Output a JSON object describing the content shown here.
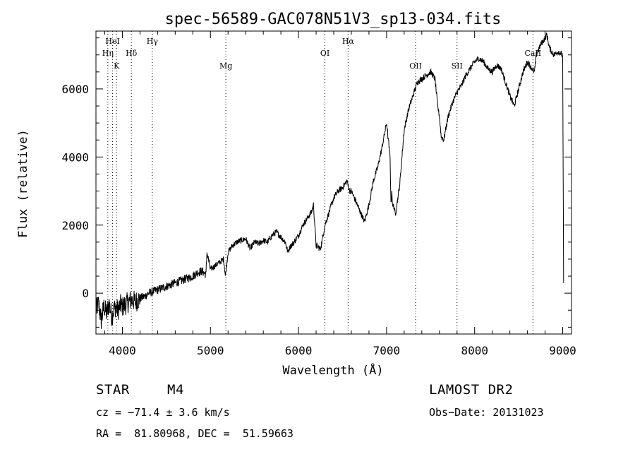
{
  "chart_data": {
    "type": "line",
    "title": "spec-56589-GAC078N51V3_sp13-034.fits",
    "xlabel": "Wavelength (Å)",
    "ylabel": "Flux (relative)",
    "xlim": [
      3700,
      9100
    ],
    "ylim": [
      -1200,
      7700
    ],
    "xticks": [
      4000,
      5000,
      6000,
      7000,
      8000,
      9000
    ],
    "yticks": [
      0,
      2000,
      4000,
      6000
    ],
    "grid": false,
    "line_color": "#000000",
    "spectral_lines": [
      {
        "name": "HeI",
        "wavelength": 3889,
        "row": 0
      },
      {
        "name": "Hη",
        "wavelength": 3835,
        "row": 1
      },
      {
        "name": "Hδ",
        "wavelength": 4102,
        "row": 1
      },
      {
        "name": "Hγ",
        "wavelength": 4340,
        "row": 0
      },
      {
        "name": "K",
        "wavelength": 3934,
        "row": 2
      },
      {
        "name": "Mg",
        "wavelength": 5175,
        "row": 2
      },
      {
        "name": "OI",
        "wavelength": 6300,
        "row": 1
      },
      {
        "name": "Hα",
        "wavelength": 6563,
        "row": 0
      },
      {
        "name": "OII",
        "wavelength": 7330,
        "row": 2
      },
      {
        "name": "SII",
        "wavelength": 7800,
        "row": 2
      },
      {
        "name": "CaII",
        "wavelength": 8662,
        "row": 1
      }
    ],
    "series": [
      {
        "name": "flux",
        "x": [
          3700,
          3730,
          3760,
          3790,
          3820,
          3850,
          3880,
          3900,
          3920,
          3950,
          3980,
          4000,
          4050,
          4100,
          4150,
          4200,
          4250,
          4300,
          4350,
          4400,
          4500,
          4600,
          4700,
          4800,
          4850,
          4900,
          4950,
          4960,
          5000,
          5050,
          5100,
          5150,
          5170,
          5200,
          5250,
          5300,
          5350,
          5400,
          5450,
          5500,
          5550,
          5600,
          5650,
          5700,
          5750,
          5800,
          5850,
          5880,
          5900,
          5950,
          6000,
          6050,
          6100,
          6150,
          6170,
          6200,
          6250,
          6300,
          6350,
          6400,
          6450,
          6500,
          6550,
          6580,
          6600,
          6650,
          6700,
          6750,
          6800,
          6850,
          6900,
          6950,
          7000,
          7040,
          7050,
          7060,
          7070,
          7080,
          7100,
          7150,
          7200,
          7250,
          7300,
          7350,
          7400,
          7450,
          7500,
          7550,
          7580,
          7600,
          7620,
          7650,
          7670,
          7700,
          7750,
          7800,
          7850,
          7900,
          7950,
          8000,
          8050,
          8100,
          8150,
          8200,
          8250,
          8300,
          8350,
          8400,
          8450,
          8500,
          8550,
          8600,
          8650,
          8680,
          8700,
          8750,
          8800,
          8820,
          8850,
          8900,
          8950,
          9000,
          9010
        ],
        "y": [
          -500,
          -300,
          -800,
          -400,
          -600,
          -300,
          -700,
          -500,
          -400,
          -500,
          -350,
          -400,
          -300,
          -200,
          -250,
          -150,
          -100,
          0,
          50,
          100,
          200,
          300,
          400,
          500,
          600,
          650,
          550,
          1200,
          700,
          800,
          900,
          1000,
          500,
          1200,
          1400,
          1500,
          1550,
          1600,
          1300,
          1500,
          1450,
          1550,
          1500,
          1700,
          1800,
          1650,
          1500,
          1200,
          1350,
          1500,
          1700,
          2000,
          2200,
          2400,
          2600,
          1400,
          1300,
          2000,
          2400,
          2800,
          3000,
          3100,
          3300,
          3000,
          3000,
          2700,
          2400,
          2100,
          2600,
          3300,
          3700,
          4300,
          5000,
          4000,
          2600,
          3000,
          2500,
          2600,
          2300,
          3200,
          4800,
          5400,
          5800,
          6200,
          6300,
          6400,
          6500,
          6300,
          5500,
          5200,
          4600,
          4500,
          4800,
          5200,
          5600,
          5900,
          6100,
          6400,
          6600,
          6800,
          6900,
          6800,
          6600,
          6500,
          6700,
          6600,
          6200,
          5800,
          5500,
          6000,
          6500,
          6800,
          6600,
          6500,
          7000,
          7300,
          7500,
          7600,
          7200,
          7000,
          7100,
          7000,
          300
        ]
      }
    ]
  },
  "info": {
    "object_class": "STAR",
    "subclass": "M4",
    "survey": "LAMOST DR2",
    "cz": "cz = −71.4 ± 3.6 km/s",
    "obs_date": "Obs−Date: 20131023",
    "coords": "RA =  81.80968, DEC =  51.59663"
  }
}
